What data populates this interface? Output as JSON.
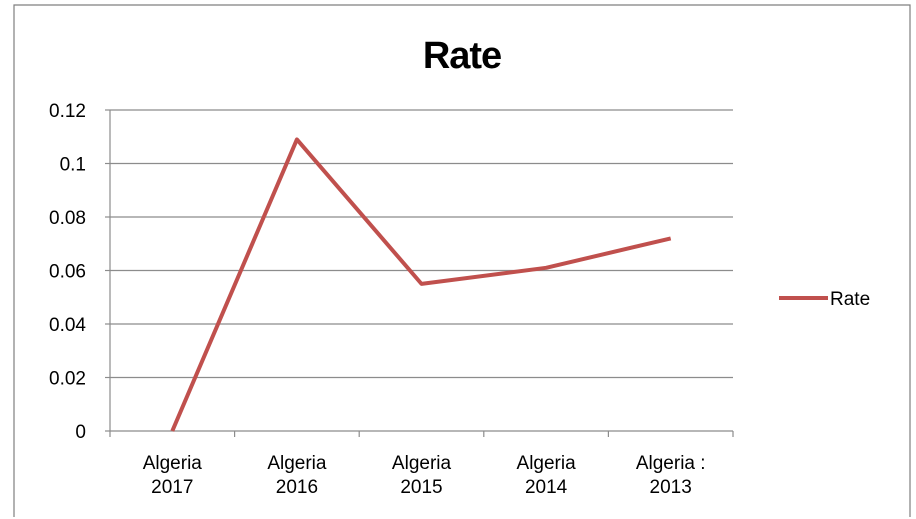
{
  "chart_data": {
    "type": "line",
    "title": "Rate",
    "categories": [
      [
        "Algeria",
        "2017"
      ],
      [
        "Algeria",
        "2016"
      ],
      [
        "Algeria",
        "2015"
      ],
      [
        "Algeria",
        "2014"
      ],
      [
        "Algeria :",
        "2013"
      ]
    ],
    "series": [
      {
        "name": "Rate",
        "values": [
          0,
          0.109,
          0.055,
          0.061,
          0.072
        ],
        "color": "#c0504d"
      }
    ],
    "y_ticks": [
      "0",
      "0.02",
      "0.04",
      "0.06",
      "0.08",
      "0.1",
      "0.12"
    ],
    "ylim": [
      0,
      0.12
    ],
    "xlabel": "",
    "ylabel": "",
    "grid": true,
    "legend_position": "right"
  }
}
